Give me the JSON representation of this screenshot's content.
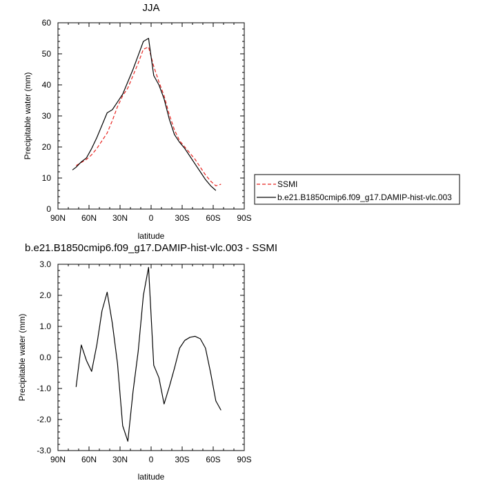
{
  "chart_data": [
    {
      "type": "line",
      "title": "JJA",
      "xlabel": "latitude",
      "ylabel": "Precipitable water (mm)",
      "xlim": [
        90,
        -90
      ],
      "ylim": [
        0,
        60
      ],
      "x_ticks": [
        90,
        60,
        30,
        0,
        -30,
        -60,
        -90
      ],
      "x_tick_labels": [
        "90N",
        "60N",
        "30N",
        "0",
        "30S",
        "60S",
        "90S"
      ],
      "y_ticks": [
        0,
        10,
        20,
        30,
        40,
        50,
        60
      ],
      "y_tick_labels": [
        "0",
        "10",
        "20",
        "30",
        "40",
        "50",
        "60"
      ],
      "legend": "right",
      "series": [
        {
          "name": "SSMI",
          "color": "#e8231f",
          "style": "dashed",
          "x": [
            72.5,
            67.5,
            62.5,
            57.5,
            52.5,
            47.5,
            42.5,
            37.5,
            32.5,
            27.5,
            22.5,
            17.5,
            12.5,
            7.5,
            2.5,
            -2.5,
            -7.5,
            -12.5,
            -17.5,
            -22.5,
            -27.5,
            -32.5,
            -37.5,
            -42.5,
            -47.5,
            -52.5,
            -57.5,
            -62.5,
            -67.5
          ],
          "y": [
            14.0,
            15.0,
            16.0,
            17.5,
            19.5,
            22.0,
            24.5,
            28.5,
            33.0,
            36.5,
            39.0,
            43.0,
            47.0,
            51.5,
            52.2,
            46.0,
            41.0,
            36.5,
            30.5,
            25.5,
            22.0,
            20.0,
            18.0,
            16.0,
            13.5,
            11.0,
            9.0,
            7.5,
            8.0
          ]
        },
        {
          "name": "b.e21.B1850cmip6.f09_g17.DAMIP-hist-vlc.003",
          "color": "#000000",
          "style": "solid",
          "x": [
            76,
            72.5,
            67.5,
            62.5,
            57.5,
            52.5,
            47.5,
            42.5,
            37.5,
            32.5,
            27.5,
            22.5,
            17.5,
            12.5,
            7.5,
            2.5,
            -2.5,
            -7.5,
            -12.5,
            -17.5,
            -22.5,
            -27.5,
            -32.5,
            -37.5,
            -42.5,
            -47.5,
            -52.5,
            -57.5,
            -62.5
          ],
          "y": [
            12.6,
            13.5,
            15.2,
            16.5,
            19.5,
            23.0,
            27.0,
            31.0,
            32.0,
            34.5,
            37.0,
            41.0,
            45.0,
            49.5,
            54.0,
            55.0,
            43.0,
            40.0,
            35.5,
            29.0,
            24.0,
            21.5,
            19.5,
            17.0,
            14.5,
            12.0,
            9.5,
            7.5,
            6.0
          ]
        }
      ]
    },
    {
      "type": "line",
      "title": "b.e21.B1850cmip6.f09_g17.DAMIP-hist-vlc.003 - SSMI",
      "xlabel": "latitude",
      "ylabel": "Precipitable water (mm)",
      "xlim": [
        90,
        -90
      ],
      "ylim": [
        -3,
        3
      ],
      "x_ticks": [
        90,
        60,
        30,
        0,
        -30,
        -60,
        -90
      ],
      "x_tick_labels": [
        "90N",
        "60N",
        "30N",
        "0",
        "30S",
        "60S",
        "90S"
      ],
      "y_ticks": [
        3,
        2,
        1,
        0,
        -1,
        -2,
        -3
      ],
      "y_tick_labels": [
        "3.0",
        "2.0",
        "1.0",
        "0.0",
        "-1.0",
        "-2.0",
        "-3.0"
      ],
      "series": [
        {
          "color": "#000000",
          "style": "solid",
          "x": [
            72.5,
            67.5,
            62.5,
            57.5,
            52.5,
            47.5,
            42.5,
            37.5,
            32.5,
            27.5,
            22.5,
            17.5,
            12.5,
            7.5,
            2.5,
            -2.5,
            -7.5,
            -12.5,
            -17.5,
            -22.5,
            -27.5,
            -32.5,
            -37.5,
            -42.5,
            -47.5,
            -52.5,
            -57.5,
            -62.5,
            -67.5
          ],
          "y": [
            -0.95,
            0.4,
            -0.1,
            -0.45,
            0.4,
            1.5,
            2.1,
            1.1,
            -0.2,
            -2.2,
            -2.7,
            -1.1,
            0.2,
            2.0,
            2.9,
            -0.25,
            -0.65,
            -1.5,
            -0.95,
            -0.35,
            0.3,
            0.55,
            0.65,
            0.68,
            0.6,
            0.3,
            -0.5,
            -1.4,
            -1.7
          ]
        }
      ]
    }
  ]
}
